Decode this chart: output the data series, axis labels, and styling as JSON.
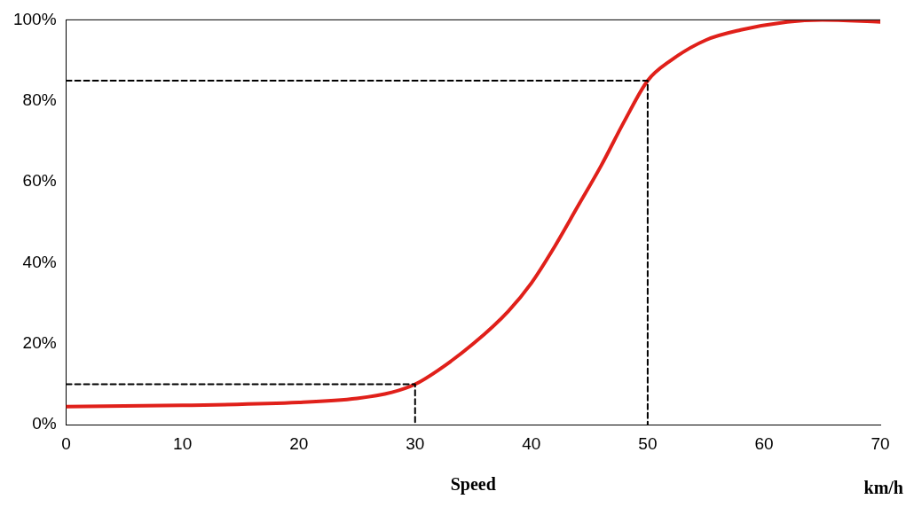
{
  "chart_data": {
    "type": "line",
    "xlabel": "Speed",
    "annotations": [
      "km/h"
    ],
    "xlim": [
      0,
      70
    ],
    "xticks": [
      0,
      10,
      20,
      30,
      40,
      50,
      60,
      70
    ],
    "ylim": [
      0,
      100
    ],
    "yticks": [
      {
        "value": 0,
        "label": "0%"
      },
      {
        "value": 20,
        "label": "20%"
      },
      {
        "value": 40,
        "label": "40%"
      },
      {
        "value": 60,
        "label": "60%"
      },
      {
        "value": 80,
        "label": "80%"
      },
      {
        "value": 100,
        "label": "100%"
      }
    ],
    "grid": false,
    "legend": false,
    "marker": "none",
    "series": [
      {
        "color": "#e0201a",
        "line_style": "solid",
        "x": [
          0,
          10,
          20,
          25,
          28,
          30,
          32,
          35,
          38,
          40,
          42,
          44,
          46,
          48,
          50,
          52,
          55,
          58,
          62,
          65,
          70
        ],
        "values": [
          4.5,
          4.8,
          5.5,
          6.5,
          8,
          10,
          13.5,
          20,
          28,
          35,
          44,
          54,
          64,
          75,
          85,
          90,
          95,
          97.5,
          99.5,
          100,
          99.5
        ]
      },
      {
        "color": "#000000",
        "line_style": "dashed",
        "x": [
          0,
          30,
          30
        ],
        "values": [
          10,
          10,
          0
        ]
      },
      {
        "color": "#000000",
        "line_style": "dashed",
        "x": [
          0,
          50,
          50
        ],
        "values": [
          85,
          85,
          0
        ]
      }
    ]
  }
}
